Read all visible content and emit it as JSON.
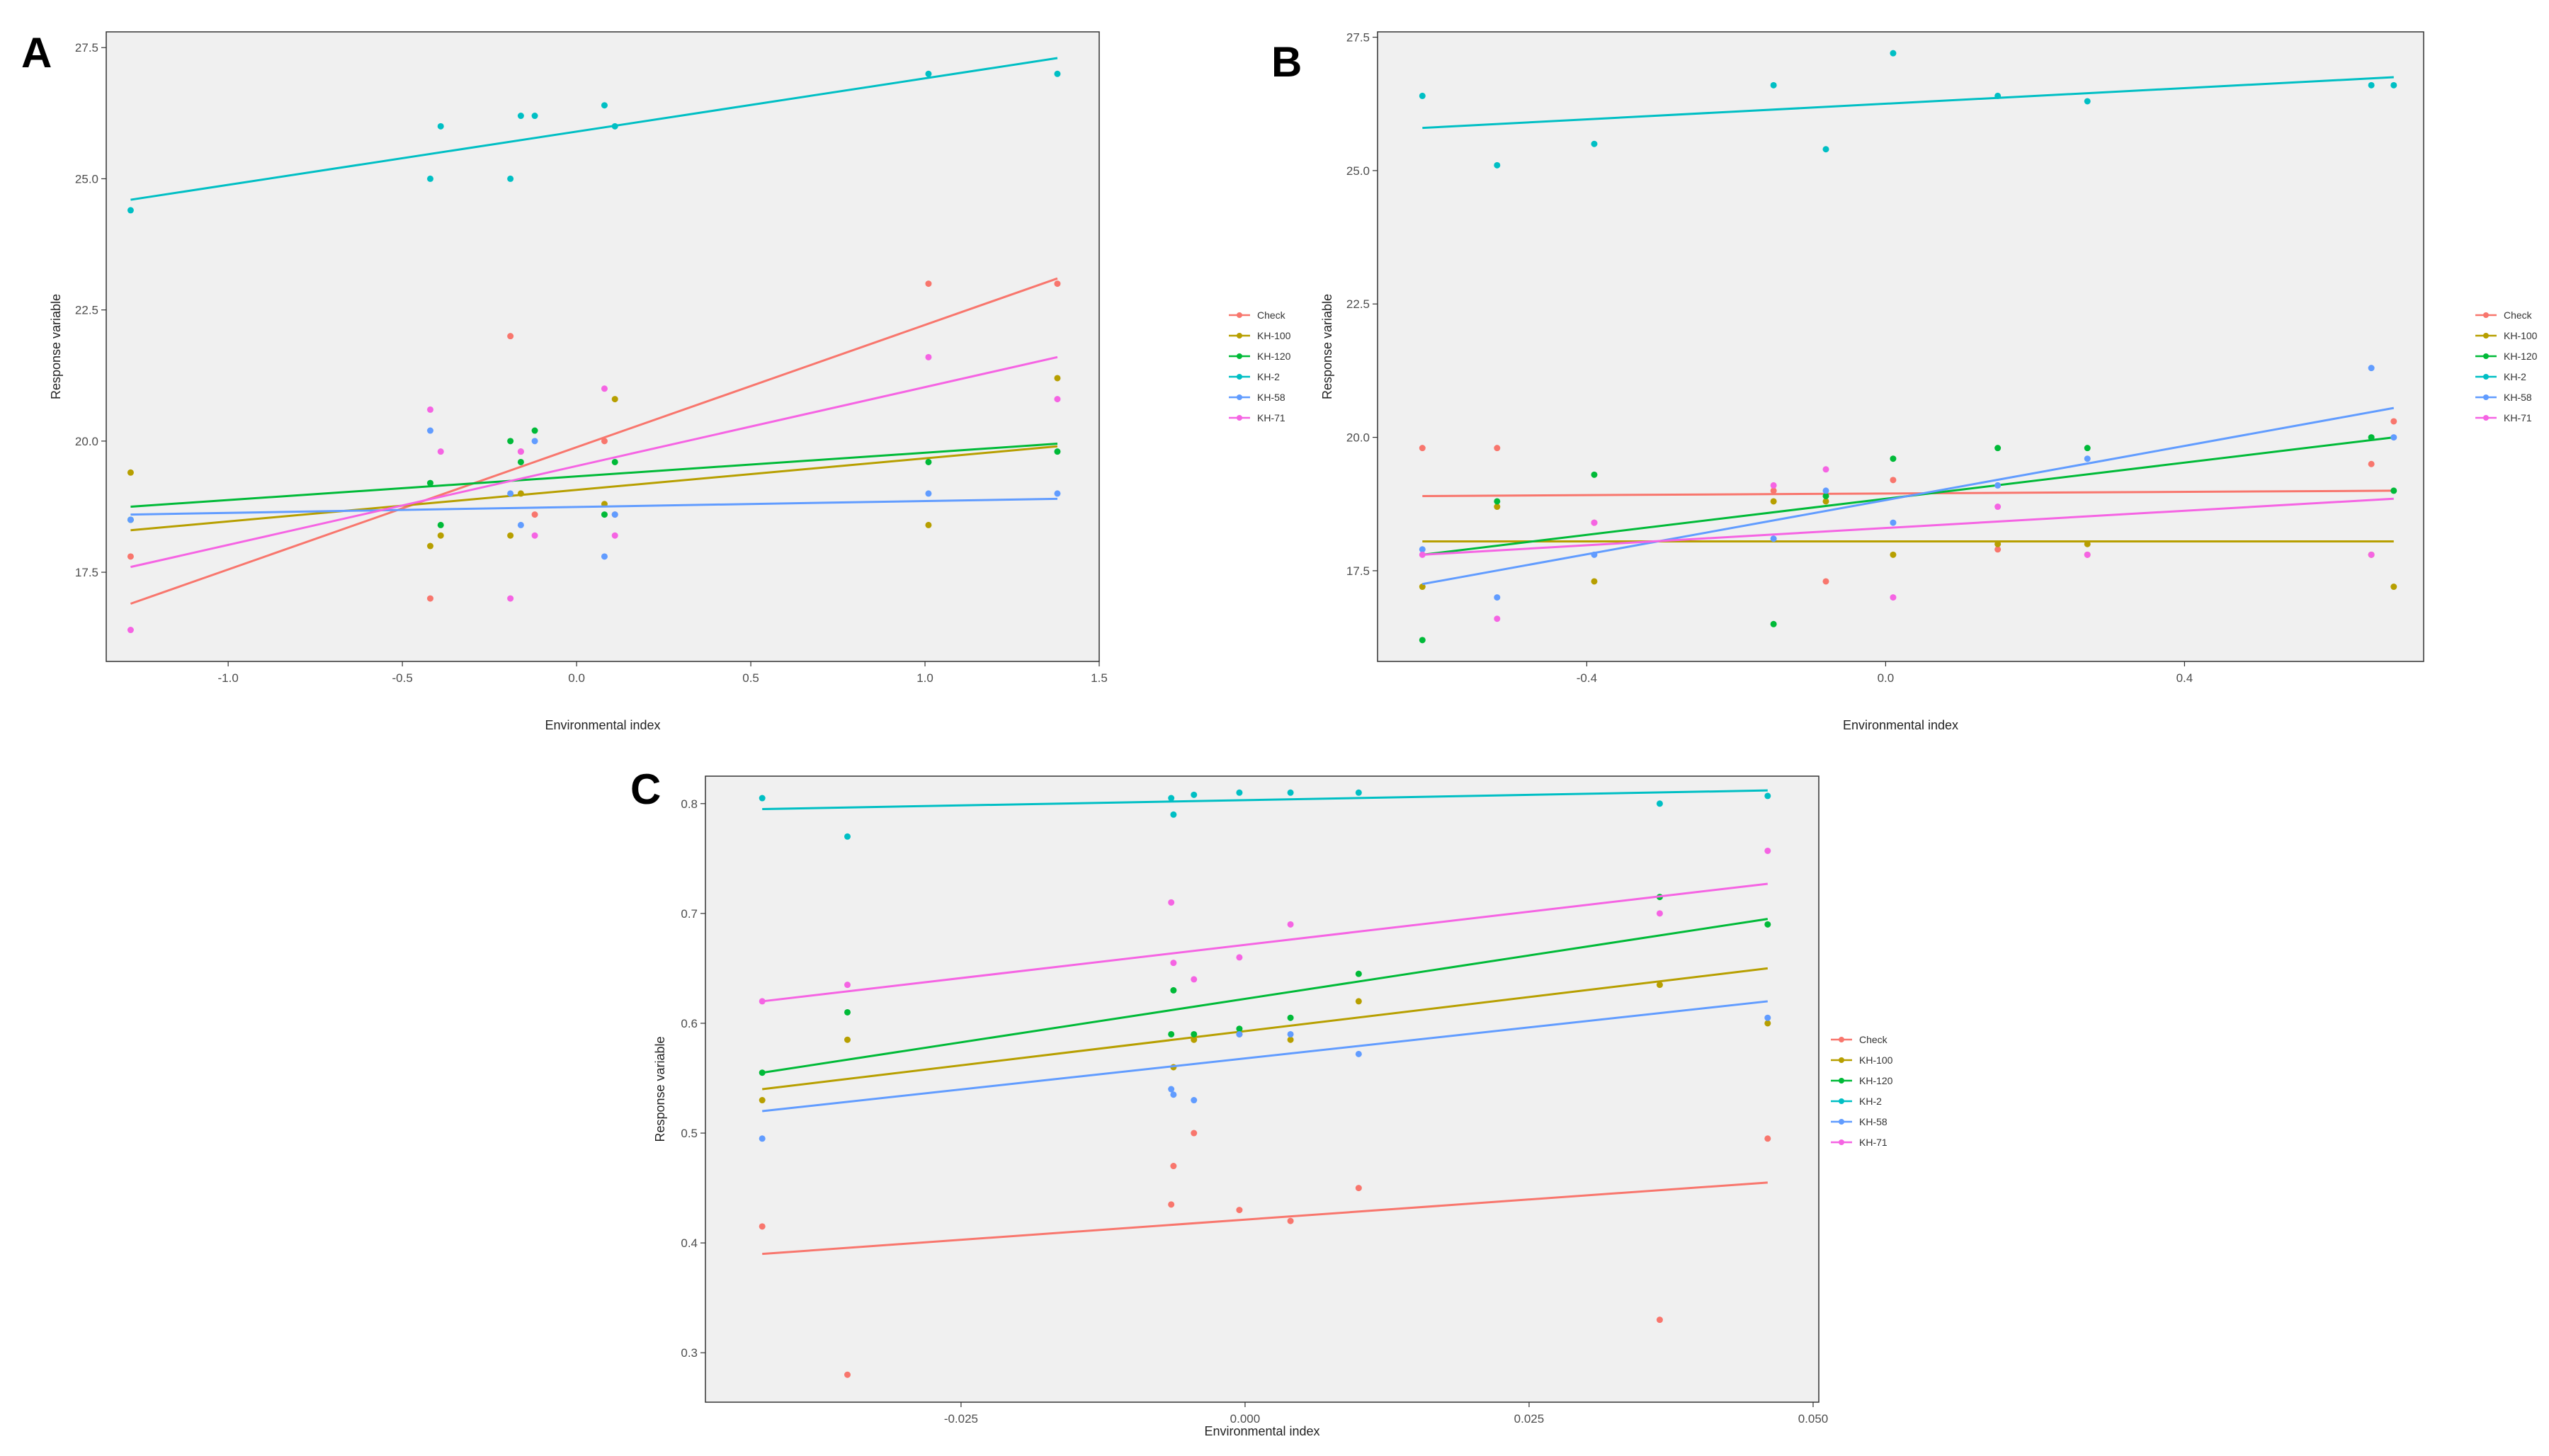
{
  "chart_data": [
    {
      "panel": "A",
      "type": "scatter",
      "title": "",
      "xlabel": "Environmental index",
      "ylabel": "Response variable",
      "xlim": [
        -1.35,
        1.5
      ],
      "ylim": [
        15.8,
        27.8
      ],
      "xticks": [
        -1.0,
        -0.5,
        0.0,
        0.5,
        1.0,
        1.5
      ],
      "xtick_labels": [
        "-1.0",
        "-0.5",
        "0.0",
        "0.5",
        "1.0",
        "1.5"
      ],
      "yticks": [
        17.5,
        20.0,
        22.5,
        25.0,
        27.5
      ],
      "ytick_labels": [
        "17.5",
        "20.0",
        "22.5",
        "25.0",
        "27.5"
      ],
      "grid": false,
      "legend_position": "right",
      "series": [
        {
          "name": "Check",
          "color": "#F8766D",
          "x": [
            -1.28,
            -0.42,
            -0.19,
            -0.16,
            -0.12,
            0.08,
            0.11,
            1.01,
            1.38
          ],
          "y": [
            17.8,
            17.0,
            22.0,
            19.8,
            18.6,
            20.0,
            18.6,
            23.0,
            23.0
          ],
          "fit": [
            16.9,
            23.1
          ]
        },
        {
          "name": "KH-100",
          "color": "#B79F00",
          "x": [
            -1.28,
            -0.42,
            -0.39,
            -0.19,
            -0.16,
            0.08,
            0.11,
            1.01,
            1.38
          ],
          "y": [
            19.4,
            18.0,
            18.2,
            18.2,
            19.0,
            18.8,
            20.8,
            18.4,
            21.2
          ],
          "fit": [
            18.3,
            19.9
          ]
        },
        {
          "name": "KH-120",
          "color": "#00BA38",
          "x": [
            -1.28,
            -0.42,
            -0.39,
            -0.19,
            -0.16,
            -0.12,
            0.08,
            0.11,
            1.01,
            1.38
          ],
          "y": [
            18.5,
            19.2,
            18.4,
            20.0,
            19.6,
            20.2,
            18.6,
            19.6,
            19.6,
            19.8
          ],
          "fit": [
            18.75,
            19.95
          ]
        },
        {
          "name": "KH-2",
          "color": "#00BFC4",
          "x": [
            -1.28,
            -0.42,
            -0.39,
            -0.19,
            -0.16,
            -0.12,
            0.08,
            0.11,
            1.01,
            1.38
          ],
          "y": [
            24.4,
            25.0,
            26.0,
            25.0,
            26.2,
            26.2,
            26.4,
            26.0,
            27.0,
            27.0
          ],
          "fit": [
            24.6,
            27.3
          ]
        },
        {
          "name": "KH-58",
          "color": "#619CFF",
          "x": [
            -1.28,
            -0.42,
            -0.19,
            -0.16,
            -0.12,
            0.08,
            0.11,
            1.01,
            1.38
          ],
          "y": [
            18.5,
            20.2,
            19.0,
            18.4,
            20.0,
            17.8,
            18.6,
            19.0,
            19.0
          ],
          "fit": [
            18.6,
            18.9
          ]
        },
        {
          "name": "KH-71",
          "color": "#F564E3",
          "x": [
            -1.28,
            -0.42,
            -0.39,
            -0.19,
            -0.16,
            -0.12,
            0.08,
            0.11,
            1.01,
            1.38
          ],
          "y": [
            16.4,
            20.6,
            19.8,
            17.0,
            19.8,
            18.2,
            21.0,
            18.2,
            21.6,
            20.8
          ],
          "fit": [
            17.6,
            21.6
          ]
        }
      ]
    },
    {
      "panel": "B",
      "type": "scatter",
      "title": "",
      "xlabel": "Environmental index",
      "ylabel": "Response variable",
      "xlim": [
        -0.68,
        0.72
      ],
      "ylim": [
        15.8,
        27.6
      ],
      "xticks": [
        -0.4,
        0.0,
        0.4
      ],
      "xtick_labels": [
        "-0.4",
        "0.0",
        "0.4"
      ],
      "yticks": [
        17.5,
        20.0,
        22.5,
        25.0,
        27.5
      ],
      "ytick_labels": [
        "17.5",
        "20.0",
        "22.5",
        "25.0",
        "27.5"
      ],
      "grid": false,
      "legend_position": "right",
      "series": [
        {
          "name": "Check",
          "color": "#F8766D",
          "x": [
            -0.62,
            -0.52,
            -0.39,
            -0.15,
            -0.08,
            0.01,
            0.15,
            0.27,
            0.65,
            0.68
          ],
          "y": [
            19.8,
            19.8,
            18.4,
            19.0,
            17.3,
            19.2,
            17.9,
            17.8,
            19.5,
            20.3
          ],
          "fit": [
            18.9,
            19.0
          ]
        },
        {
          "name": "KH-100",
          "color": "#B79F00",
          "x": [
            -0.62,
            -0.52,
            -0.39,
            -0.15,
            -0.08,
            0.01,
            0.15,
            0.27,
            0.65,
            0.68
          ],
          "y": [
            17.2,
            18.7,
            17.3,
            18.8,
            18.8,
            17.8,
            18.0,
            18.0,
            17.8,
            17.2
          ],
          "fit": [
            18.05,
            18.05
          ]
        },
        {
          "name": "KH-120",
          "color": "#00BA38",
          "x": [
            -0.62,
            -0.52,
            -0.39,
            -0.15,
            -0.08,
            0.01,
            0.15,
            0.27,
            0.65,
            0.68
          ],
          "y": [
            16.2,
            18.8,
            19.3,
            16.5,
            18.9,
            19.6,
            19.8,
            19.8,
            20.0,
            19.0
          ],
          "fit": [
            17.8,
            20.0
          ]
        },
        {
          "name": "KH-2",
          "color": "#00BFC4",
          "x": [
            -0.62,
            -0.52,
            -0.39,
            -0.15,
            -0.08,
            0.01,
            0.15,
            0.27,
            0.65,
            0.68
          ],
          "y": [
            26.4,
            25.1,
            25.5,
            26.6,
            25.4,
            27.2,
            26.4,
            26.3,
            26.6,
            26.6
          ],
          "fit": [
            25.8,
            26.75
          ]
        },
        {
          "name": "KH-58",
          "color": "#619CFF",
          "x": [
            -0.62,
            -0.52,
            -0.39,
            -0.15,
            -0.08,
            0.01,
            0.15,
            0.27,
            0.65,
            0.68
          ],
          "y": [
            17.9,
            17.0,
            17.8,
            18.1,
            19.0,
            18.4,
            19.1,
            19.6,
            21.3,
            20.0
          ],
          "fit": [
            17.25,
            20.55
          ]
        },
        {
          "name": "KH-71",
          "color": "#F564E3",
          "x": [
            -0.62,
            -0.52,
            -0.39,
            -0.15,
            -0.08,
            0.01,
            0.15,
            0.27,
            0.65
          ],
          "y": [
            17.8,
            16.6,
            18.4,
            19.1,
            19.4,
            17.0,
            18.7,
            17.8,
            17.8
          ],
          "fit": [
            17.8,
            18.85
          ]
        }
      ]
    },
    {
      "panel": "C",
      "type": "scatter",
      "title": "",
      "xlabel": "Environmental index",
      "ylabel": "Response variable",
      "xlim": [
        -0.0475,
        0.0505
      ],
      "ylim": [
        0.255,
        0.825
      ],
      "xticks": [
        -0.025,
        0.0,
        0.025,
        0.05
      ],
      "xtick_labels": [
        "-0.025",
        "0.000",
        "0.025",
        "0.050"
      ],
      "yticks": [
        0.3,
        0.4,
        0.5,
        0.6,
        0.7,
        0.8
      ],
      "ytick_labels": [
        "0.3",
        "0.4",
        "0.5",
        "0.6",
        "0.7",
        "0.8"
      ],
      "grid": false,
      "legend_position": "right",
      "series": [
        {
          "name": "Check",
          "color": "#F8766D",
          "x": [
            -0.0425,
            -0.035,
            -0.0065,
            -0.0063,
            -0.0045,
            -0.0005,
            0.004,
            0.01,
            0.0365,
            0.046
          ],
          "y": [
            0.415,
            0.28,
            0.435,
            0.47,
            0.5,
            0.43,
            0.42,
            0.45,
            0.33,
            0.495
          ],
          "fit": [
            0.39,
            0.455
          ]
        },
        {
          "name": "KH-100",
          "color": "#B79F00",
          "x": [
            -0.0425,
            -0.035,
            -0.0063,
            -0.0045,
            -0.0005,
            0.004,
            0.01,
            0.0365,
            0.046
          ],
          "y": [
            0.53,
            0.585,
            0.56,
            0.585,
            0.59,
            0.585,
            0.62,
            0.635,
            0.6
          ],
          "fit": [
            0.54,
            0.65
          ]
        },
        {
          "name": "KH-120",
          "color": "#00BA38",
          "x": [
            -0.0425,
            -0.035,
            -0.0065,
            -0.0063,
            -0.0045,
            -0.0005,
            0.004,
            0.01,
            0.0365,
            0.046
          ],
          "y": [
            0.555,
            0.61,
            0.59,
            0.63,
            0.59,
            0.595,
            0.605,
            0.645,
            0.715,
            0.69
          ],
          "fit": [
            0.555,
            0.695
          ]
        },
        {
          "name": "KH-2",
          "color": "#00BFC4",
          "x": [
            -0.0425,
            -0.035,
            -0.0065,
            -0.0063,
            -0.0045,
            -0.0005,
            0.004,
            0.01,
            0.0365,
            0.046
          ],
          "y": [
            0.805,
            0.77,
            0.805,
            0.79,
            0.808,
            0.81,
            0.81,
            0.81,
            0.8,
            0.807
          ],
          "fit": [
            0.795,
            0.812
          ]
        },
        {
          "name": "KH-58",
          "color": "#619CFF",
          "x": [
            -0.0425,
            -0.0065,
            -0.0063,
            -0.0045,
            -0.0005,
            0.004,
            0.01,
            0.046
          ],
          "y": [
            0.495,
            0.54,
            0.535,
            0.53,
            0.59,
            0.59,
            0.572,
            0.605
          ],
          "fit": [
            0.52,
            0.62
          ]
        },
        {
          "name": "KH-71",
          "color": "#F564E3",
          "x": [
            -0.0425,
            -0.035,
            -0.0065,
            -0.0063,
            -0.0045,
            -0.0005,
            0.004,
            0.0365,
            0.046
          ],
          "y": [
            0.62,
            0.635,
            0.71,
            0.655,
            0.64,
            0.66,
            0.69,
            0.7,
            0.757
          ],
          "fit": [
            0.62,
            0.727
          ]
        }
      ]
    }
  ]
}
